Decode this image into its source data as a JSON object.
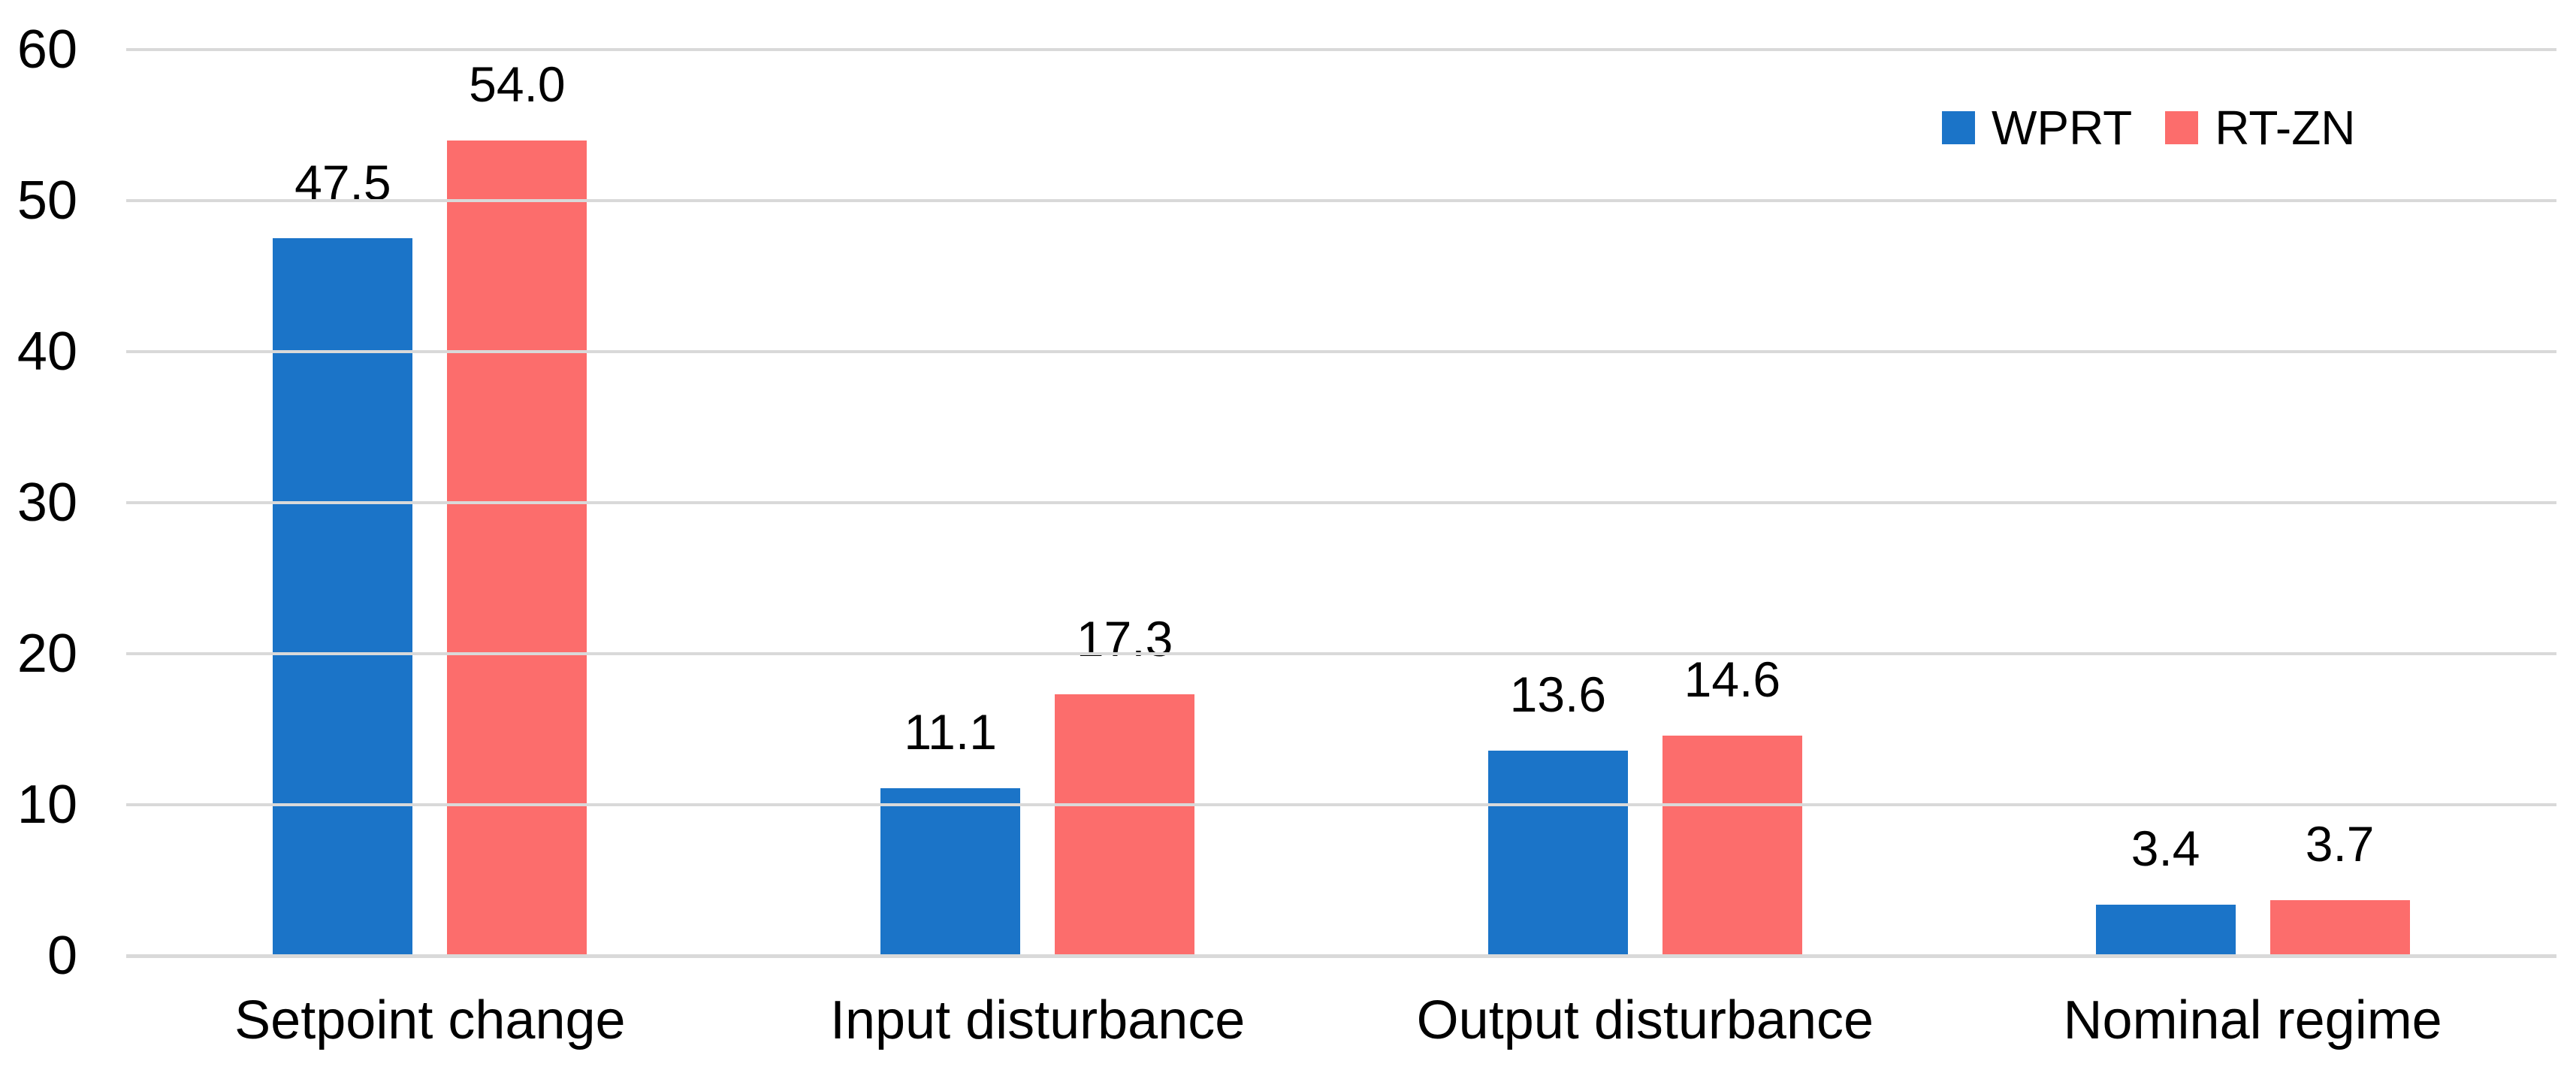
{
  "chart_data": {
    "type": "bar",
    "title": "",
    "xlabel": "",
    "ylabel": "",
    "categories": [
      "Setpoint change",
      "Input disturbance",
      "Output disturbance",
      "Nominal regime"
    ],
    "series": [
      {
        "name": "WPRT",
        "color": "#1B74C8",
        "values": [
          47.5,
          11.1,
          13.6,
          3.4
        ],
        "labels": [
          "47.5",
          "11.1",
          "13.6",
          "3.4"
        ]
      },
      {
        "name": "RT-ZN",
        "color": "#FC6D6C",
        "values": [
          54.0,
          17.3,
          14.6,
          3.7
        ],
        "labels": [
          "54.0",
          "17.3",
          "14.6",
          "3.7"
        ]
      }
    ],
    "ylim": [
      0,
      60
    ],
    "yticks": [
      0,
      10,
      20,
      30,
      40,
      50,
      60
    ],
    "grid": "horizontal",
    "gridline_color": "#D9D9D9",
    "axis_text_color": "#000000",
    "legend_position": "top-right"
  }
}
